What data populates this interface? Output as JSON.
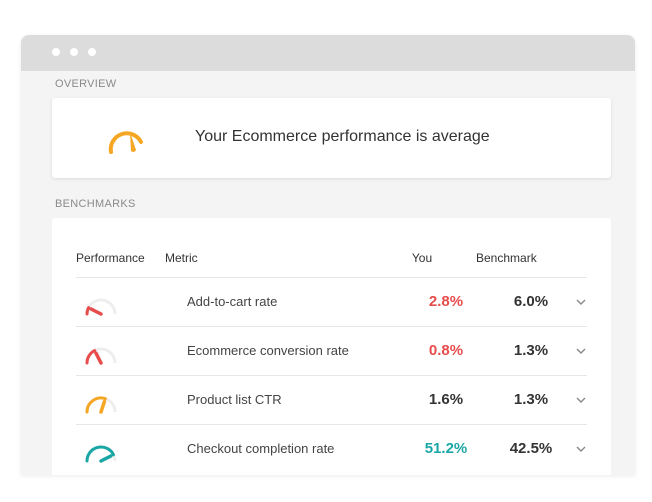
{
  "overview": {
    "section_label": "OVERVIEW",
    "message": "Your Ecommerce performance is average",
    "gauge_color": "#f5a623"
  },
  "benchmarks": {
    "section_label": "BENCHMARKS",
    "headers": {
      "performance": "Performance",
      "metric": "Metric",
      "you": "You",
      "benchmark": "Benchmark"
    },
    "rows": [
      {
        "metric": "Add-to-cart rate",
        "you": "2.8%",
        "benchmark": "6.0%",
        "color": "#e84c4c",
        "level": 0.15,
        "icon": "performance-gauge-icon",
        "expand_icon": "chevron-down-icon"
      },
      {
        "metric": "Ecommerce conversion rate",
        "you": "0.8%",
        "benchmark": "1.3%",
        "color": "#e84c4c",
        "level": 0.35,
        "icon": "performance-gauge-icon",
        "expand_icon": "chevron-down-icon"
      },
      {
        "metric": "Product list CTR",
        "you": "1.6%",
        "benchmark": "1.3%",
        "color": "#f5a623",
        "level": 0.6,
        "icon": "performance-gauge-icon",
        "expand_icon": "chevron-down-icon"
      },
      {
        "metric": "Checkout completion rate",
        "you": "51.2%",
        "benchmark": "42.5%",
        "color": "#1ba6a6",
        "level": 0.85,
        "icon": "performance-gauge-icon",
        "expand_icon": "chevron-down-icon"
      }
    ]
  },
  "colors": {
    "you_default": "#333333"
  }
}
